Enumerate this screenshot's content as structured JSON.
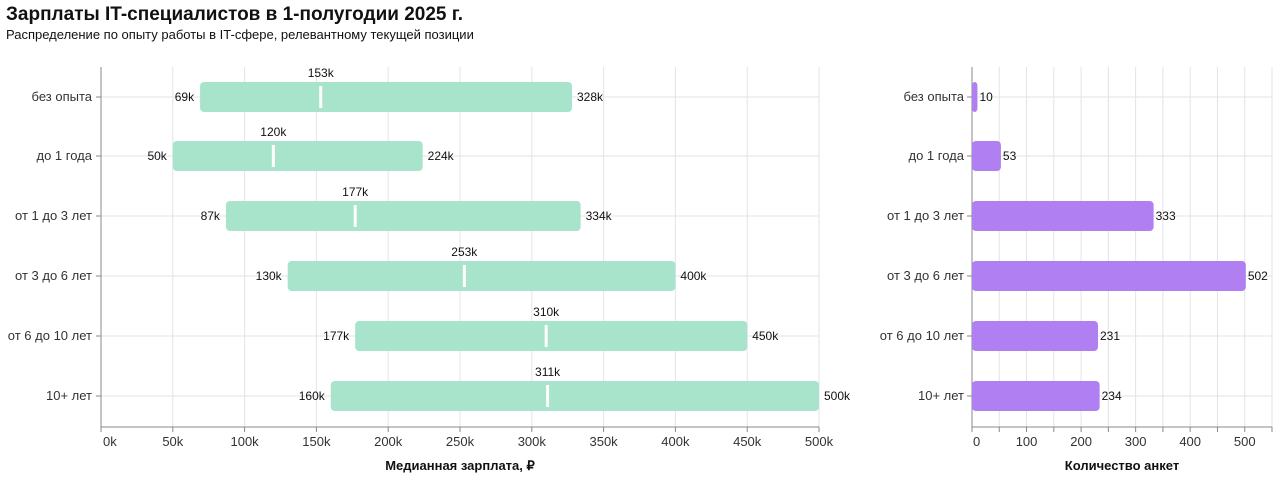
{
  "title": "Зарплаты IT-специалистов в 1-полугодии 2025 г.",
  "subtitle": "Распределение по опыту работы в IT-сфере, релевантному текущей позиции",
  "chart_data": [
    {
      "type": "bar",
      "subtype": "range-with-median",
      "categories": [
        "без опыта",
        "до 1 года",
        "от 1 до 3 лет",
        "от 3 до 6 лет",
        "от 6 до 10 лет",
        "10+ лет"
      ],
      "min": [
        69,
        50,
        87,
        130,
        177,
        160
      ],
      "median": [
        153,
        120,
        177,
        253,
        310,
        311
      ],
      "max": [
        328,
        224,
        334,
        400,
        450,
        500
      ],
      "min_labels": [
        "69k",
        "50k",
        "87k",
        "130k",
        "177k",
        "160k"
      ],
      "median_labels": [
        "153k",
        "120k",
        "177k",
        "253k",
        "310k",
        "311k"
      ],
      "max_labels": [
        "328k",
        "224k",
        "334k",
        "400k",
        "450k",
        "500k"
      ],
      "xlabel": "Медианная зарплата, ₽",
      "xlim": [
        0,
        500
      ],
      "xticks": [
        0,
        50,
        100,
        150,
        200,
        250,
        300,
        350,
        400,
        450,
        500
      ],
      "xtick_labels": [
        "0k",
        "50k",
        "100k",
        "150k",
        "200k",
        "250k",
        "300k",
        "350k",
        "400k",
        "450k",
        "500k"
      ],
      "bar_color": "#a8e3cb",
      "median_color": "#ffffff",
      "grid": true
    },
    {
      "type": "bar",
      "orientation": "horizontal",
      "categories": [
        "без опыта",
        "до 1 года",
        "от 1 до 3 лет",
        "от 3 до 6 лет",
        "от 6 до 10 лет",
        "10+ лет"
      ],
      "values": [
        10,
        53,
        333,
        502,
        231,
        234
      ],
      "value_labels": [
        "10",
        "53",
        "333",
        "502",
        "231",
        "234"
      ],
      "xlabel": "Количество анкет",
      "xlim": [
        0,
        550
      ],
      "xticks": [
        0,
        100,
        200,
        300,
        400,
        500
      ],
      "xtick_labels": [
        "0",
        "100",
        "200",
        "300",
        "400",
        "500"
      ],
      "bar_color": "#b07ff2",
      "grid": true
    }
  ]
}
